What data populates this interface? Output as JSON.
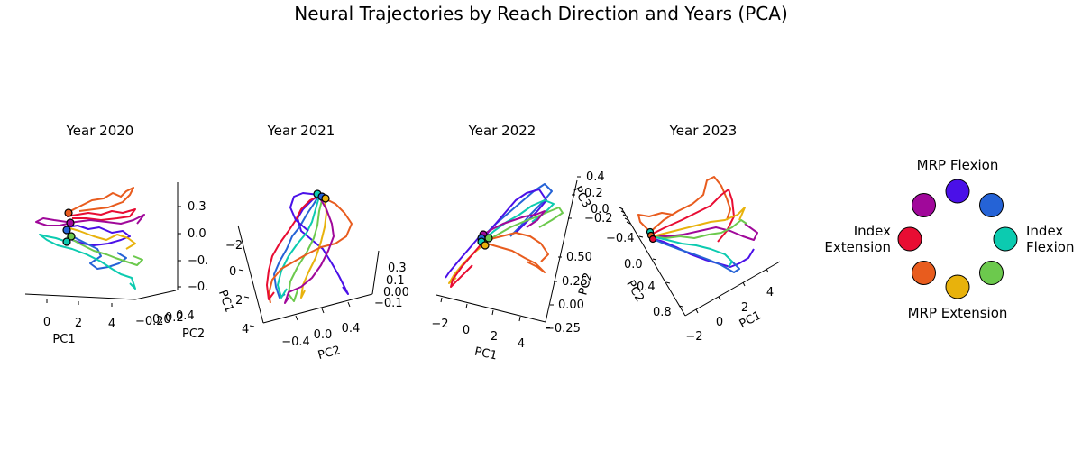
{
  "figure": {
    "title": "Neural Trajectories by Reach Direction and Years (PCA)"
  },
  "colors": {
    "mrp_flexion": "#4a10e8",
    "index_flexion_mrp": "#2563d6",
    "index_flexion": "#0ccbb0",
    "index_extension_mrp_extension_lime": "#6cc94d",
    "mrp_extension": "#e8b20c",
    "mrp_extension_orange": "#e85c1e",
    "index_extension": "#e80d33",
    "index_flexion_mrp_extension_purple": "#a0089a"
  },
  "legend": {
    "top_label": "MRP Flexion",
    "bottom_label": "MRP Extension",
    "left_label_line1": "Index",
    "left_label_line2": "Extension",
    "right_label_line1": "Index",
    "right_label_line2": "Flexion",
    "circles": [
      {
        "color": "#4a10e8",
        "angle_deg": 90
      },
      {
        "color": "#2563d6",
        "angle_deg": 45
      },
      {
        "color": "#0ccbb0",
        "angle_deg": 0
      },
      {
        "color": "#6cc94d",
        "angle_deg": -45
      },
      {
        "color": "#e8b20c",
        "angle_deg": -90
      },
      {
        "color": "#e85c1e",
        "angle_deg": -135
      },
      {
        "color": "#e80d33",
        "angle_deg": 180
      },
      {
        "color": "#a0089a",
        "angle_deg": 135
      }
    ]
  },
  "chart_data": [
    {
      "type": "line",
      "projection": "3d",
      "title": "Year 2020",
      "xlabel": "PC1",
      "ylabel": "PC2",
      "zlabel": "",
      "x_ticks": [
        "0",
        "2",
        "4"
      ],
      "y_ticks": [
        "−0.2",
        "0.0",
        "0.2",
        "0.4"
      ],
      "z_ticks": [
        "0.3",
        "0.0",
        "−0.",
        "−0."
      ],
      "series_colors": [
        "#e85c1e",
        "#e80d33",
        "#a0089a",
        "#4a10e8",
        "#2563d6",
        "#6cc94d",
        "#0ccbb0",
        "#e8b20c"
      ]
    },
    {
      "type": "line",
      "projection": "3d",
      "title": "Year 2021",
      "xlabel": "PC2",
      "ylabel": "PC1",
      "zlabel": "",
      "x_ticks": [
        "−0.4",
        "0.0",
        "0.4"
      ],
      "y_ticks": [
        "−2",
        "0",
        "2",
        "4"
      ],
      "z_ticks": [
        "0.3",
        "0.1",
        "0.00",
        "−0.1"
      ],
      "series_colors": [
        "#4a10e8",
        "#2563d6",
        "#0ccbb0",
        "#6cc94d",
        "#e8b20c",
        "#e85c1e",
        "#e80d33",
        "#a0089a"
      ]
    },
    {
      "type": "line",
      "projection": "3d",
      "title": "Year 2022",
      "xlabel": "PC1",
      "ylabel": "PC2",
      "zlabel": "PC3",
      "x_ticks": [
        "−2",
        "0",
        "2",
        "4"
      ],
      "y_ticks": [
        "−0.25",
        "0.00",
        "0.25",
        "0.50"
      ],
      "z_ticks": [
        "0.4",
        "0.2",
        "0.0",
        "−0.2"
      ],
      "series_colors": [
        "#2563d6",
        "#4a10e8",
        "#0ccbb0",
        "#6cc94d",
        "#e8b20c",
        "#e85c1e",
        "#e80d33",
        "#a0089a"
      ]
    },
    {
      "type": "line",
      "projection": "3d",
      "title": "Year 2023",
      "xlabel": "PC1",
      "ylabel": "PC2",
      "zlabel": "",
      "x_ticks": [
        "−2",
        "0",
        "2",
        "4"
      ],
      "y_ticks": [
        "−0.4",
        "0.0",
        "0.4",
        "0.8"
      ],
      "z_ticks": [],
      "series_colors": [
        "#e85c1e",
        "#e80d33",
        "#a0089a",
        "#4a10e8",
        "#2563d6",
        "#6cc94d",
        "#0ccbb0",
        "#e8b20c"
      ]
    }
  ]
}
